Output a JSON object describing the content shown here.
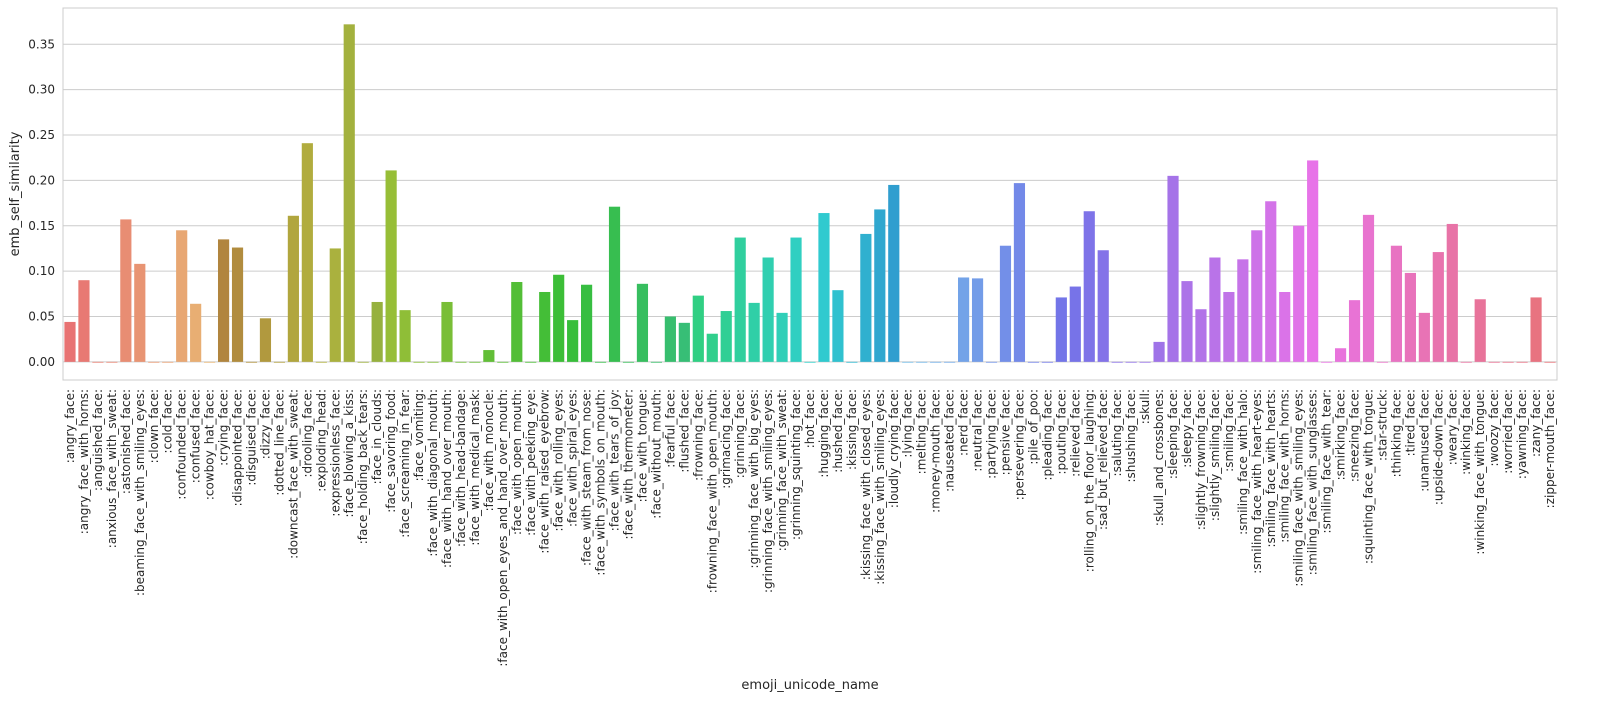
{
  "chart_data": {
    "type": "bar",
    "title": "",
    "xlabel": "emoji_unicode_name",
    "ylabel": "emb_self_similarity",
    "ylim": [
      -0.02,
      0.39
    ],
    "yticks": [
      "0.00",
      "0.05",
      "0.10",
      "0.15",
      "0.20",
      "0.25",
      "0.30",
      "0.35"
    ],
    "grid": "horizontal",
    "categories": [
      ":angry_face:",
      ":angry_face_with_horns:",
      ":anguished_face:",
      ":anxious_face_with_sweat:",
      ":astonished_face:",
      ":beaming_face_with_smiling_eyes:",
      ":clown_face:",
      ":cold_face:",
      ":confounded_face:",
      ":confused_face:",
      ":cowboy_hat_face:",
      ":crying_face:",
      ":disappointed_face:",
      ":disguised_face:",
      ":dizzy_face:",
      ":dotted_line_face:",
      ":downcast_face_with_sweat:",
      ":drooling_face:",
      ":exploding_head:",
      ":expressionless_face:",
      ":face_blowing_a_kiss:",
      ":face_holding_back_tears:",
      ":face_in_clouds:",
      ":face_savoring_food:",
      ":face_screaming_in_fear:",
      ":face_vomiting:",
      ":face_with_diagonal_mouth:",
      ":face_with_hand_over_mouth:",
      ":face_with_head-bandage:",
      ":face_with_medical_mask:",
      ":face_with_monocle:",
      ":face_with_open_eyes_and_hand_over_mouth:",
      ":face_with_open_mouth:",
      ":face_with_peeking_eye:",
      ":face_with_raised_eyebrow:",
      ":face_with_rolling_eyes:",
      ":face_with_spiral_eyes:",
      ":face_with_steam_from_nose:",
      ":face_with_symbols_on_mouth:",
      ":face_with_tears_of_joy:",
      ":face_with_thermometer:",
      ":face_with_tongue:",
      ":face_without_mouth:",
      ":fearful_face:",
      ":flushed_face:",
      ":frowning_face:",
      ":frowning_face_with_open_mouth:",
      ":grimacing_face:",
      ":grinning_face:",
      ":grinning_face_with_big_eyes:",
      ":grinning_face_with_smiling_eyes:",
      ":grinning_face_with_sweat:",
      ":grinning_squinting_face:",
      ":hot_face:",
      ":hugging_face:",
      ":hushed_face:",
      ":kissing_face:",
      ":kissing_face_with_closed_eyes:",
      ":kissing_face_with_smiling_eyes:",
      ":loudly_crying_face:",
      ":lying_face:",
      ":melting_face:",
      ":money-mouth_face:",
      ":nauseated_face:",
      ":nerd_face:",
      ":neutral_face:",
      ":partying_face:",
      ":pensive_face:",
      ":persevering_face:",
      ":pile_of_poo:",
      ":pleading_face:",
      ":pouting_face:",
      ":relieved_face:",
      ":rolling_on_the_floor_laughing:",
      ":sad_but_relieved_face:",
      ":saluting_face:",
      ":shushing_face:",
      ":skull:",
      ":skull_and_crossbones:",
      ":sleeping_face:",
      ":sleepy_face:",
      ":slightly_frowning_face:",
      ":slightly_smiling_face:",
      ":smiling_face:",
      ":smiling_face_with_halo:",
      ":smiling_face_with_heart-eyes:",
      ":smiling_face_with_hearts:",
      ":smiling_face_with_horns:",
      ":smiling_face_with_smiling_eyes:",
      ":smiling_face_with_sunglasses:",
      ":smiling_face_with_tear:",
      ":smirking_face:",
      ":sneezing_face:",
      ":squinting_face_with_tongue:",
      ":star-struck:",
      ":thinking_face:",
      ":tired_face:",
      ":unamused_face:",
      ":upside-down_face:",
      ":weary_face:",
      ":winking_face:",
      ":winking_face_with_tongue:",
      ":woozy_face:",
      ":worried_face:",
      ":yawning_face:",
      ":zany_face:",
      ":zipper-mouth_face:"
    ],
    "values": [
      0.044,
      0.09,
      0.0,
      0.0,
      0.157,
      0.108,
      0.0,
      0.0,
      0.145,
      0.064,
      0.0,
      0.135,
      0.126,
      0.0,
      0.048,
      0.0,
      0.161,
      0.241,
      0.0,
      0.125,
      0.372,
      0.0,
      0.066,
      0.211,
      0.057,
      0.0,
      0.0,
      0.066,
      0.0,
      0.0,
      0.013,
      0.0,
      0.088,
      0.0,
      0.077,
      0.096,
      0.046,
      0.085,
      0.0,
      0.171,
      0.0,
      0.086,
      0.0,
      0.05,
      0.043,
      0.073,
      0.031,
      0.056,
      0.137,
      0.065,
      0.115,
      0.054,
      0.137,
      0.0,
      0.164,
      0.079,
      0.0,
      0.141,
      0.168,
      0.195,
      0.0,
      0.0,
      0.0,
      0.0,
      0.093,
      0.092,
      0.0,
      0.128,
      0.197,
      0.0,
      0.0,
      0.071,
      0.083,
      0.166,
      0.123,
      0.0,
      0.0,
      0.0,
      0.022,
      0.205,
      0.089,
      0.058,
      0.115,
      0.077,
      0.113,
      0.145,
      0.177,
      0.077,
      0.15,
      0.222,
      0.0,
      0.015,
      0.068,
      0.162,
      0.0,
      0.128,
      0.098,
      0.054,
      0.121,
      0.152,
      0.0,
      0.069,
      0.0,
      0.0,
      0.0,
      0.071,
      0.0
    ]
  }
}
